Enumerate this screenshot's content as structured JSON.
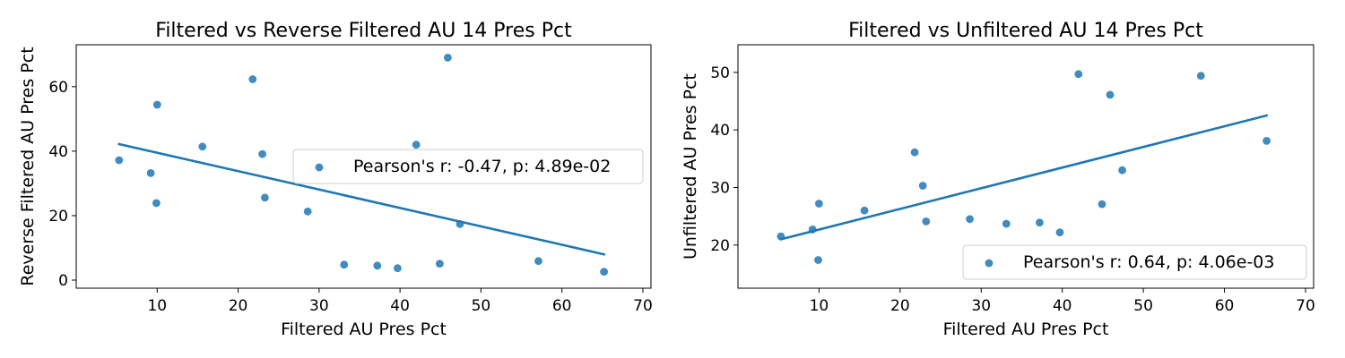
{
  "chart_data": [
    {
      "type": "scatter",
      "title": "Filtered vs Reverse Filtered AU 14 Pres Pct",
      "xlabel": "Filtered AU Pres Pct",
      "ylabel": "Reverse Filtered AU Pres Pct",
      "xlim": [
        0,
        71
      ],
      "ylim": [
        -2.5,
        73
      ],
      "xticks": [
        10,
        20,
        30,
        40,
        50,
        60,
        70
      ],
      "yticks": [
        0,
        20,
        40,
        60
      ],
      "grid": false,
      "legend_position": "center-right",
      "series": [
        {
          "name": "Pearson's r: -0.47, p: 4.89e-02",
          "color": "#1f77b4",
          "points": [
            [
              5.3,
              37.2
            ],
            [
              9.2,
              33.2
            ],
            [
              9.9,
              23.9
            ],
            [
              10.0,
              54.4
            ],
            [
              15.6,
              41.4
            ],
            [
              21.8,
              62.3
            ],
            [
              23.0,
              39.1
            ],
            [
              23.3,
              25.6
            ],
            [
              28.6,
              21.3
            ],
            [
              33.1,
              4.8
            ],
            [
              37.2,
              4.5
            ],
            [
              39.7,
              3.7
            ],
            [
              42.0,
              42.0
            ],
            [
              44.9,
              5.1
            ],
            [
              45.9,
              69.0
            ],
            [
              47.4,
              17.4
            ],
            [
              57.1,
              5.9
            ],
            [
              65.2,
              2.6
            ]
          ]
        }
      ],
      "regression_line": {
        "color": "#1f77b4",
        "x": [
          5.3,
          65.2
        ],
        "y": [
          42.2,
          8.0
        ]
      }
    },
    {
      "type": "scatter",
      "title": "Filtered vs Unfiltered AU 14 Pres Pct",
      "xlabel": "Filtered AU Pres Pct",
      "ylabel": "Unfiltered AU Pres Pct",
      "xlim": [
        0,
        71
      ],
      "ylim": [
        12.5,
        54.8
      ],
      "xticks": [
        10,
        20,
        30,
        40,
        50,
        60,
        70
      ],
      "yticks": [
        20,
        30,
        40,
        50
      ],
      "grid": false,
      "legend_position": "lower-right",
      "series": [
        {
          "name": "Pearson's r: 0.64, p: 4.06e-03",
          "color": "#1f77b4",
          "points": [
            [
              5.3,
              21.5
            ],
            [
              9.2,
              22.7
            ],
            [
              9.9,
              17.4
            ],
            [
              10.0,
              27.2
            ],
            [
              15.6,
              26.0
            ],
            [
              21.8,
              36.1
            ],
            [
              22.8,
              30.3
            ],
            [
              23.2,
              24.1
            ],
            [
              28.6,
              24.5
            ],
            [
              33.1,
              23.7
            ],
            [
              37.2,
              23.9
            ],
            [
              39.7,
              22.2
            ],
            [
              42.0,
              49.7
            ],
            [
              44.9,
              27.1
            ],
            [
              45.9,
              46.1
            ],
            [
              47.4,
              33.0
            ],
            [
              57.1,
              49.4
            ],
            [
              65.2,
              38.1
            ]
          ]
        }
      ],
      "regression_line": {
        "color": "#1f77b4",
        "x": [
          5.3,
          65.2
        ],
        "y": [
          21.0,
          42.5
        ]
      }
    }
  ]
}
